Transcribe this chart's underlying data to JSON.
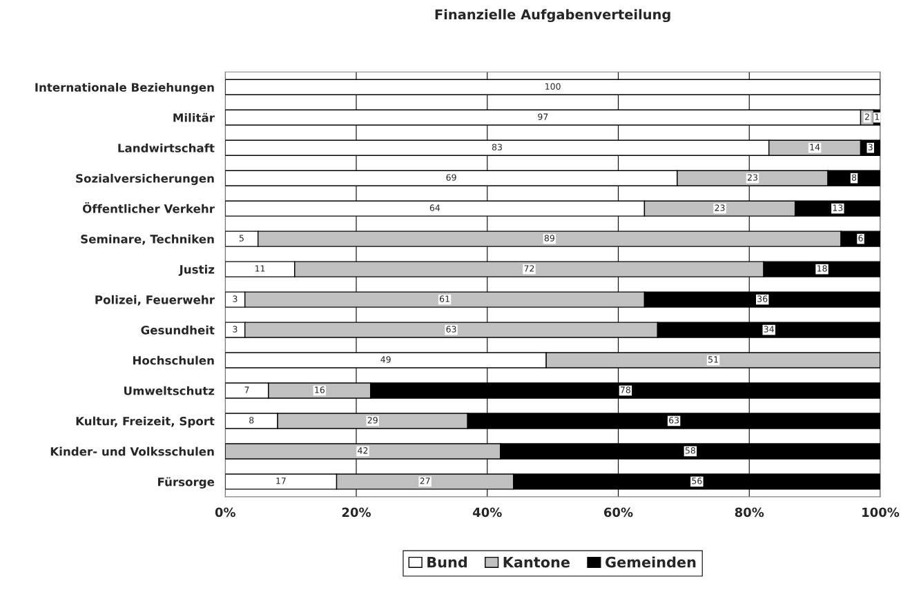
{
  "chart_data": {
    "type": "bar",
    "title": "Finanzielle Aufgabenverteilung",
    "orientation": "horizontal",
    "stacked": true,
    "categories": [
      "Internationale Beziehungen",
      "Militär",
      "Landwirtschaft",
      "Sozialversicherungen",
      "Öffentlicher Verkehr",
      "Seminare, Techniken",
      "Justiz",
      "Polizei, Feuerwehr",
      "Gesundheit",
      "Hochschulen",
      "Umweltschutz",
      "Kultur, Freizeit, Sport",
      "Kinder- und Volksschulen",
      "Fürsorge"
    ],
    "series": [
      {
        "name": "Bund",
        "color": "#ffffff",
        "values": [
          100,
          97,
          83,
          69,
          64,
          5,
          10.6,
          3,
          3,
          49,
          6.6,
          8,
          0,
          17
        ],
        "value_labels": [
          "100",
          "97",
          "83",
          "69",
          "64",
          "5",
          "11",
          "3",
          "3",
          "49",
          "7",
          "8",
          null,
          "17"
        ]
      },
      {
        "name": "Kantone",
        "color": "#c0c0c0",
        "values": [
          0,
          2,
          14,
          23,
          23,
          89,
          71.6,
          61,
          63,
          51,
          15.6,
          29,
          42,
          27
        ],
        "value_labels": [
          null,
          "2",
          "14",
          "23",
          "23",
          "89",
          "72",
          "61",
          "63",
          "51",
          "16",
          "29",
          "42",
          "27"
        ]
      },
      {
        "name": "Gemeinden",
        "color": "#000000",
        "values": [
          0,
          1,
          3,
          8,
          13,
          6,
          17.8,
          36,
          34,
          0,
          77.8,
          63,
          58,
          56
        ],
        "value_labels": [
          null,
          "1",
          "3",
          "8",
          "13",
          "6",
          "18",
          "36",
          "34",
          null,
          "78",
          "63",
          "58",
          "56"
        ]
      }
    ],
    "xlim": [
      0,
      100
    ],
    "xticks": [
      {
        "value": 0,
        "label": "0%"
      },
      {
        "value": 20,
        "label": "20%"
      },
      {
        "value": 40,
        "label": "40%"
      },
      {
        "value": 60,
        "label": "60%"
      },
      {
        "value": 80,
        "label": "80%"
      },
      {
        "value": 100,
        "label": "100%"
      }
    ],
    "grid": "x",
    "legend": "bottom"
  }
}
